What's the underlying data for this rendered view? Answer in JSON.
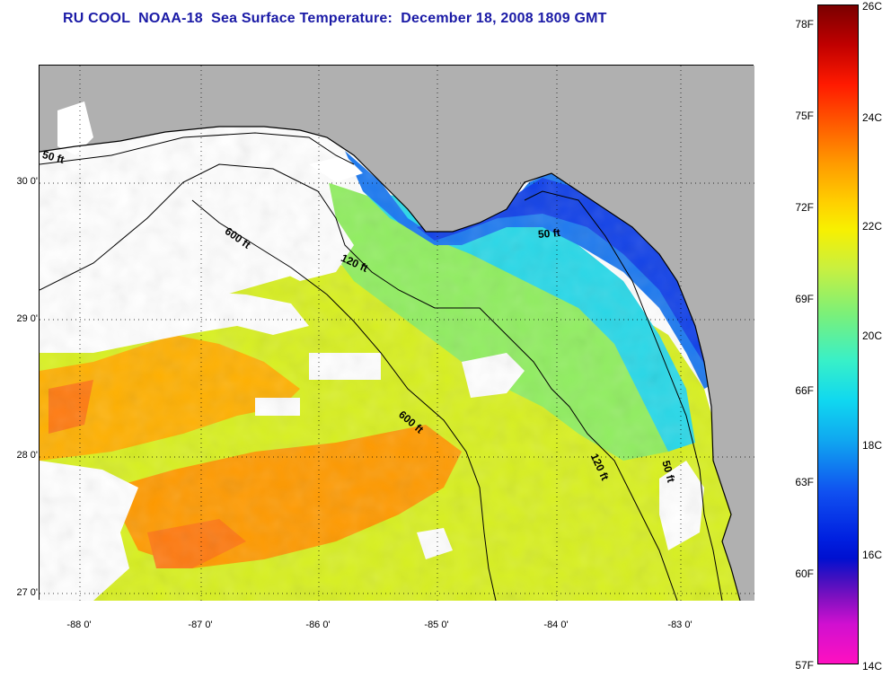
{
  "title": "RU COOL  NOAA-18  Sea Surface Temperature:  December 18, 2008 1809 GMT",
  "latitude_labels": [
    "30 0'",
    "29 0'",
    "28 0'",
    "27 0'"
  ],
  "longitude_labels": [
    "-88 0'",
    "-87 0'",
    "-86 0'",
    "-85 0'",
    "-84 0'",
    "-83 0'"
  ],
  "contour_labels": {
    "c50_west": "50 ft",
    "c600_north": "600 ft",
    "c120_north": "120 ft",
    "c50_bigbend": "50 ft",
    "c600_south": "600 ft",
    "c120_south": "120 ft",
    "c50_south": "50 ft"
  },
  "colorbar": {
    "fahrenheit": [
      "78F",
      "75F",
      "72F",
      "69F",
      "66F",
      "63F",
      "60F",
      "57F"
    ],
    "celsius": [
      "26C",
      "24C",
      "22C",
      "20C",
      "18C",
      "16C",
      "14C"
    ]
  },
  "colors": {
    "title": "#1a1aa6",
    "land": "#b0b0b0",
    "cloud": "#ffffff"
  }
}
